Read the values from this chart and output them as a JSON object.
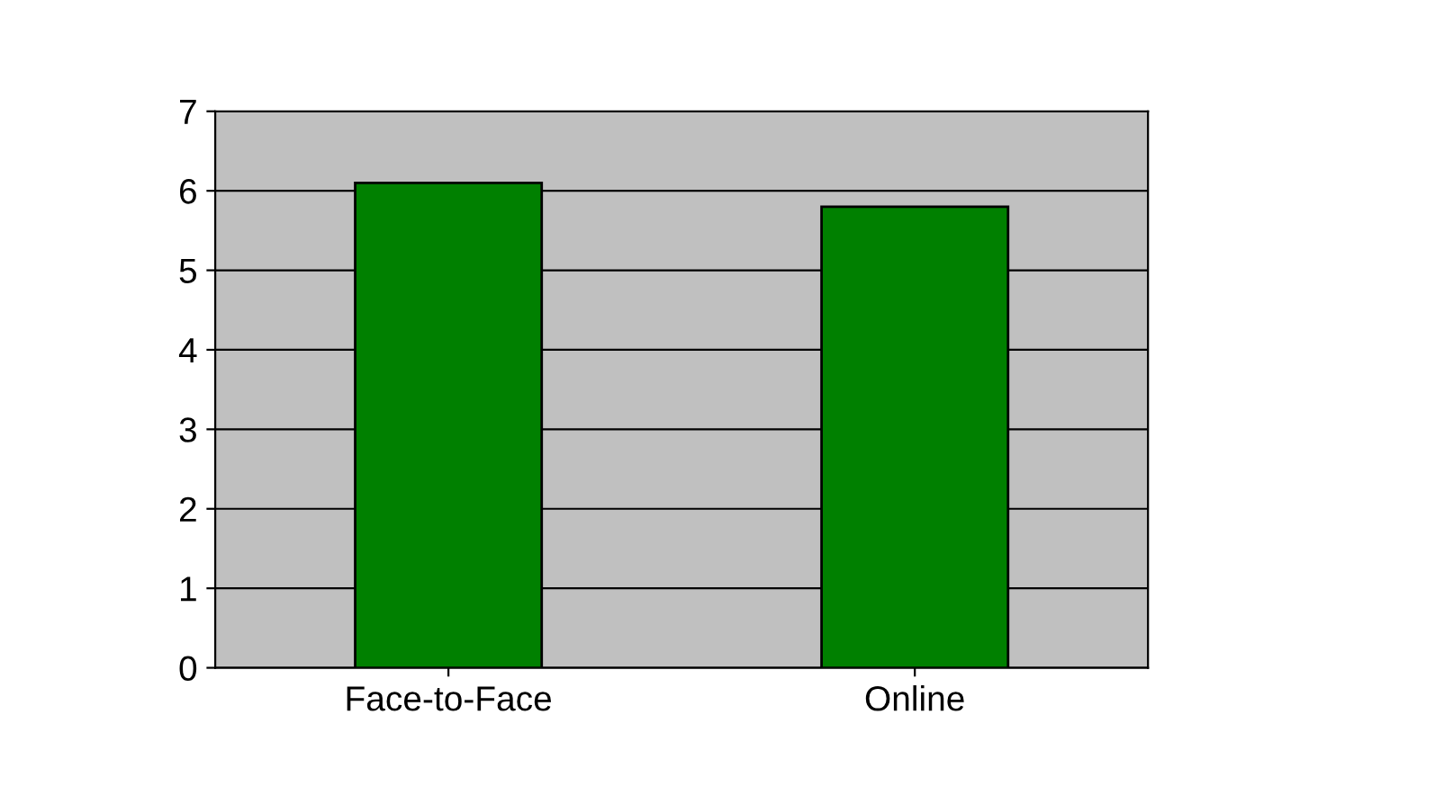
{
  "chart_data": {
    "type": "bar",
    "categories": [
      "Face-to-Face",
      "Online"
    ],
    "values": [
      6.1,
      5.8
    ],
    "color": "#008000",
    "ylim": [
      0,
      7
    ],
    "yticks": [
      0,
      1,
      2,
      3,
      4,
      5,
      6,
      7
    ],
    "grid": "y"
  }
}
